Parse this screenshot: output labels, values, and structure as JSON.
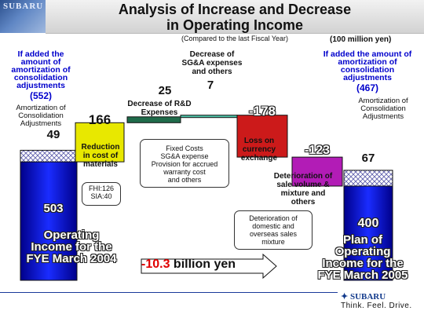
{
  "header": {
    "logo": "SUBARU",
    "title_line1": "Analysis of Increase and Decrease",
    "title_line2": "in Operating Income",
    "subtitle": "(Compared to the last Fiscal Year)",
    "unit": "(100 million yen)"
  },
  "left_note": {
    "line1": "If added the",
    "line2": "amount of",
    "line3": "amortization of",
    "line4": "consolidation",
    "line5": "adjustments",
    "value": "(552)",
    "amort1": "Amortization of",
    "amort2": "Consolidation",
    "amort3": "Adjustments"
  },
  "right_note": {
    "line1": "If added the amount of",
    "line2": "amortization of",
    "line3": "consolidation",
    "line4": "adjustments",
    "value": "(467)",
    "amort1": "Amortization of",
    "amort2": "Consolidation",
    "amort3": "Adjustments"
  },
  "annotations": {
    "materials1": "Reduction",
    "materials2": "in cost of",
    "materials3": "materials",
    "fhi1": "FHI:126",
    "fhi2": "SIA:40",
    "rd1": "Decrease of R&D",
    "rd2": "Expenses",
    "sga1": "Decrease of",
    "sga2": "SG&A expenses",
    "sga3": "and others",
    "fixed1": "Fixed Costs",
    "fixed2": "SG&A expense",
    "fixed3": "Provision for accrued",
    "fixed4": "warranty cost",
    "fixed5": "and others",
    "fx1": "Loss on",
    "fx2": "currency",
    "fx3": "exchange",
    "vol1": "Deterioration of",
    "vol2": "sale volume &",
    "vol3": "mixture and",
    "vol4": "others",
    "dom1": "Deterioration of",
    "dom2": "domestic and",
    "dom3": "overseas sales",
    "dom4": "mixture",
    "fye04_1": "Operating",
    "fye04_2": "Income for the",
    "fye04_3": "FYE March 2004",
    "fye05_1": "Plan of",
    "fye05_2": "Operating",
    "fye05_3": "Income for the",
    "fye05_4": "FYE March 2005"
  },
  "total": {
    "value": "-10.3",
    "unit": "billion yen"
  },
  "footer": {
    "brand": "SUBARU",
    "tagline": "Think. Feel. Drive."
  },
  "chart_data": {
    "type": "bar",
    "subtype": "waterfall",
    "categories": [
      "Operating Income for the FYE March 2004",
      "Reduction in cost of materials",
      "Decrease of R&D Expenses",
      "Decrease of SG&A expenses and others",
      "Loss on currency exchange",
      "Deterioration of sale volume & mixture and others",
      "Plan of Operating Income for the FYE March 2005"
    ],
    "values": [
      503,
      166,
      25,
      7,
      -178,
      -123,
      400
    ],
    "labels": [
      "503",
      "166",
      "25",
      "7",
      "-178",
      "-123",
      "400"
    ],
    "stacked_amortization": [
      49,
      null,
      null,
      null,
      null,
      null,
      67
    ],
    "colors": [
      "#0a14b8",
      "#e8e800",
      "#1f6b4a",
      "#4fc4a8",
      "#cc1a1a",
      "#b21cb6",
      "#0a14b8"
    ],
    "unit": "100 million yen"
  }
}
